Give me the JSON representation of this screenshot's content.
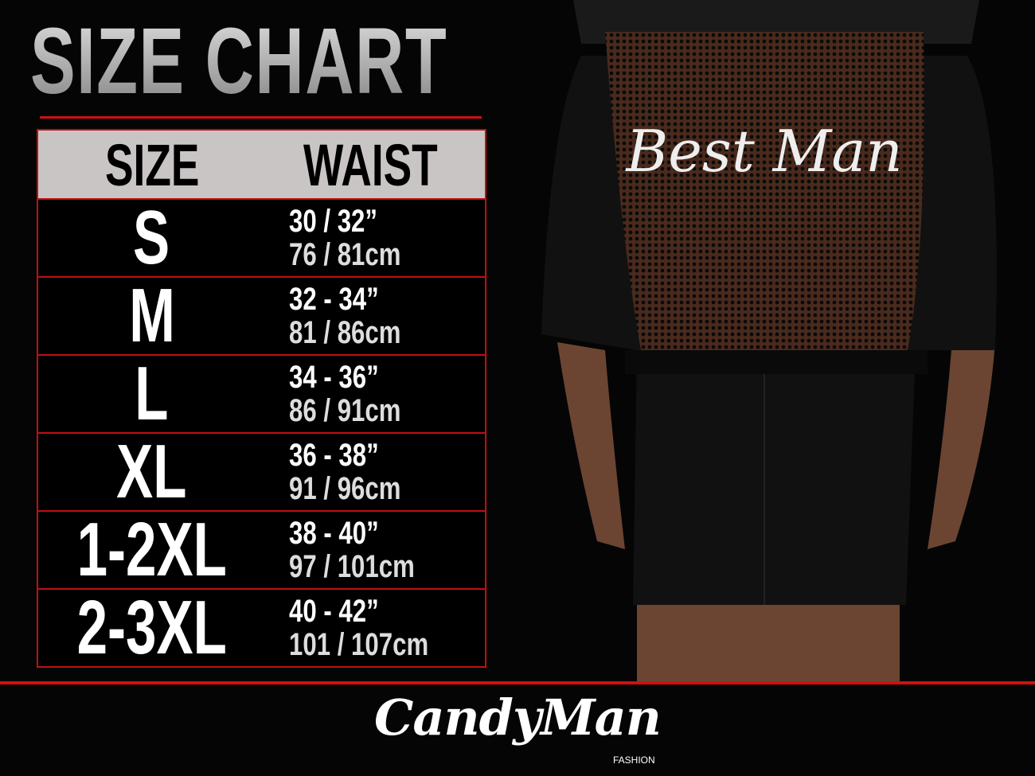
{
  "title": "SIZE CHART",
  "table": {
    "headers": {
      "size": "SIZE",
      "waist": "WAIST"
    },
    "rows": [
      {
        "size": "S",
        "inches": "30 / 32”",
        "cm": "76 / 81cm"
      },
      {
        "size": "M",
        "inches": "32 - 34”",
        "cm": "81 / 86cm"
      },
      {
        "size": "L",
        "inches": "34 - 36”",
        "cm": "86 / 91cm"
      },
      {
        "size": "XL",
        "inches": "36 - 38”",
        "cm": "91 / 96cm"
      },
      {
        "size": "1-2XL",
        "inches": "38 - 40”",
        "cm": "97 / 101cm"
      },
      {
        "size": "2-3XL",
        "inches": "40 - 42”",
        "cm": "101 / 107cm"
      }
    ]
  },
  "product": {
    "print_text": "Best Man"
  },
  "brand": {
    "name": "CandyMan",
    "sub": "FASHION"
  },
  "colors": {
    "accent": "#d01010",
    "header_bg": "#c9c5c5",
    "background": "#050505"
  }
}
